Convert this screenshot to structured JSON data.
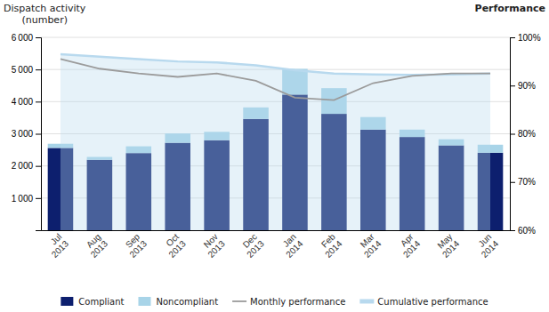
{
  "chart_data": {
    "type": "bar",
    "stacked": true,
    "ylabel": "Dispatch activity\n  (number)",
    "y2label": "Performance",
    "categories": [
      "Jul\n2013",
      "Aug\n2013",
      "Sep\n2013",
      "Oct\n2013",
      "Nov\n2013",
      "Dec\n2013",
      "Jan\n2014",
      "Feb\n2014",
      "Mar\n2014",
      "Apr\n2014",
      "May\n2014",
      "Jun\n2014"
    ],
    "series": [
      {
        "name": "Compliant",
        "type": "bar",
        "color": "#0d1f6e",
        "values": [
          2560,
          2190,
          2400,
          2720,
          2800,
          3460,
          4220,
          3620,
          3130,
          2900,
          2640,
          2410
        ]
      },
      {
        "name": "Noncompliant",
        "type": "bar",
        "color": "#a8d4e8",
        "values": [
          130,
          90,
          210,
          290,
          260,
          360,
          800,
          800,
          390,
          230,
          190,
          250
        ]
      },
      {
        "name": "Monthly performance",
        "type": "line",
        "axis": "y2",
        "color": "#9b9b9b",
        "values": [
          95.5,
          93.5,
          92.5,
          91.8,
          92.5,
          91.0,
          87.5,
          87.0,
          90.5,
          92.0,
          92.5,
          92.5
        ]
      },
      {
        "name": "Cumulative performance",
        "type": "area",
        "axis": "y2",
        "color": "#b8d9ee",
        "values": [
          96.5,
          96.0,
          95.5,
          95.0,
          94.8,
          94.2,
          93.2,
          92.5,
          92.3,
          92.2,
          92.3,
          92.5
        ]
      }
    ],
    "ylim": [
      0,
      6000
    ],
    "yticks": [
      {
        "value": 1000,
        "label": "1 000"
      },
      {
        "value": 2000,
        "label": "2 000"
      },
      {
        "value": 3000,
        "label": "3 000"
      },
      {
        "value": 4000,
        "label": "4 000"
      },
      {
        "value": 5000,
        "label": "5 000"
      },
      {
        "value": 6000,
        "label": "6 000"
      }
    ],
    "y2lim": [
      60,
      100
    ],
    "y2ticks": [
      {
        "value": 60,
        "label": "60%"
      },
      {
        "value": 70,
        "label": "70%"
      },
      {
        "value": 80,
        "label": "80%"
      },
      {
        "value": 90,
        "label": "90%"
      },
      {
        "value": 100,
        "label": "100%"
      }
    ],
    "grid": true,
    "legend": "bottom"
  }
}
